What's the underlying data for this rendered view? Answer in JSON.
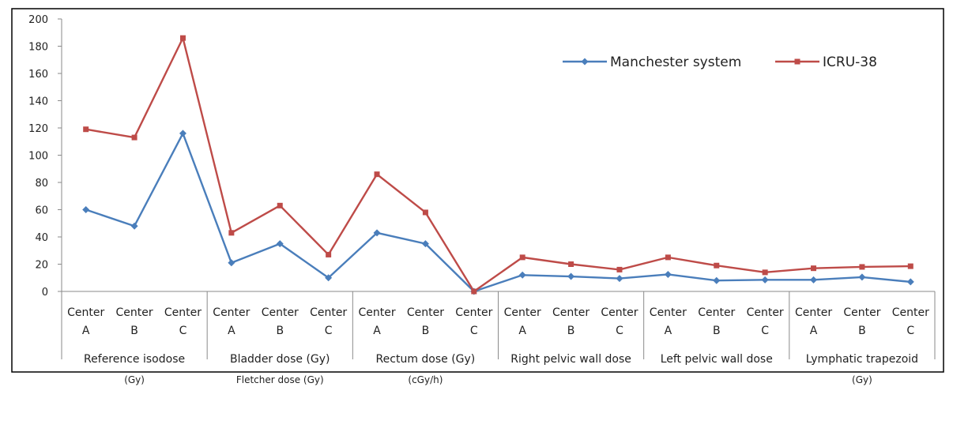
{
  "chart_data": {
    "type": "line",
    "ylim": [
      0,
      200
    ],
    "yticks": [
      0,
      20,
      40,
      60,
      80,
      100,
      120,
      140,
      160,
      180,
      200
    ],
    "grid": false,
    "legend_position": "top-right",
    "x": [
      {
        "top": "Center",
        "bottom": "A"
      },
      {
        "top": "Center",
        "bottom": "B"
      },
      {
        "top": "Center",
        "bottom": "C"
      },
      {
        "top": "Center",
        "bottom": "A"
      },
      {
        "top": "Center",
        "bottom": "B"
      },
      {
        "top": "Center",
        "bottom": "C"
      },
      {
        "top": "Center",
        "bottom": "A"
      },
      {
        "top": "Center",
        "bottom": "B"
      },
      {
        "top": "Center",
        "bottom": "C"
      },
      {
        "top": "Center",
        "bottom": "A"
      },
      {
        "top": "Center",
        "bottom": "B"
      },
      {
        "top": "Center",
        "bottom": "C"
      },
      {
        "top": "Center",
        "bottom": "A"
      },
      {
        "top": "Center",
        "bottom": "B"
      },
      {
        "top": "Center",
        "bottom": "C"
      },
      {
        "top": "Center",
        "bottom": "A"
      },
      {
        "top": "Center",
        "bottom": "B"
      },
      {
        "top": "Center",
        "bottom": "C"
      }
    ],
    "groups": [
      {
        "label": "Reference isodose",
        "sub": "(Gy)"
      },
      {
        "label": "Bladder dose (Gy)",
        "sub": "Fletcher dose (Gy)"
      },
      {
        "label": "Rectum dose (Gy)",
        "sub": "(cGy/h)"
      },
      {
        "label": "Right pelvic wall dose",
        "sub": ""
      },
      {
        "label": "Left pelvic wall dose",
        "sub": ""
      },
      {
        "label": "Lymphatic trapezoid",
        "sub": "(Gy)"
      }
    ],
    "series": [
      {
        "name": "Manchester system",
        "color": "#4a7ebb",
        "marker": "diamond",
        "values": [
          60,
          48,
          116,
          21,
          35,
          10,
          43,
          35,
          0,
          12,
          11,
          9.5,
          12.5,
          8,
          8.5,
          8.5,
          10.5,
          7
        ]
      },
      {
        "name": "ICRU-38",
        "color": "#be4b48",
        "marker": "square",
        "values": [
          119,
          113,
          186,
          43,
          63,
          27,
          86,
          58,
          0,
          25,
          20,
          16,
          25,
          19,
          14,
          17,
          18,
          18.5
        ]
      }
    ]
  }
}
